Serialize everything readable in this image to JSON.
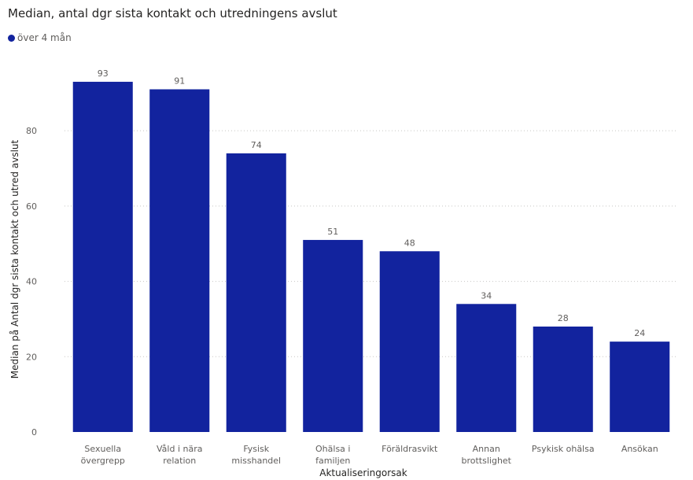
{
  "chart_data": {
    "type": "bar",
    "title": "Median, antal dgr sista kontakt och utredningens avslut",
    "legend_position": "top-left",
    "series": [
      {
        "name": "över 4 mån",
        "color": "#12239e",
        "values": [
          93,
          91,
          74,
          51,
          48,
          34,
          28,
          24
        ]
      }
    ],
    "categories": [
      [
        "Sexuella",
        "övergrepp"
      ],
      [
        "Våld i nära",
        "relation"
      ],
      [
        "Fysisk",
        "misshandel"
      ],
      [
        "Ohälsa i",
        "familjen"
      ],
      [
        "Föräldrasvikt"
      ],
      [
        "Annan",
        "brottslighet"
      ],
      [
        "Psykisk ohälsa"
      ],
      [
        "Ansökan"
      ]
    ],
    "data_labels": [
      "93",
      "91",
      "74",
      "51",
      "48",
      "34",
      "28",
      "24"
    ],
    "xlabel": "Aktualiseringorsak",
    "ylabel": "Median på Antal dgr sista kontakt och utred avslut",
    "ylim": [
      0,
      98
    ],
    "yticks": [
      0,
      20,
      40,
      60,
      80
    ],
    "grid": true
  }
}
